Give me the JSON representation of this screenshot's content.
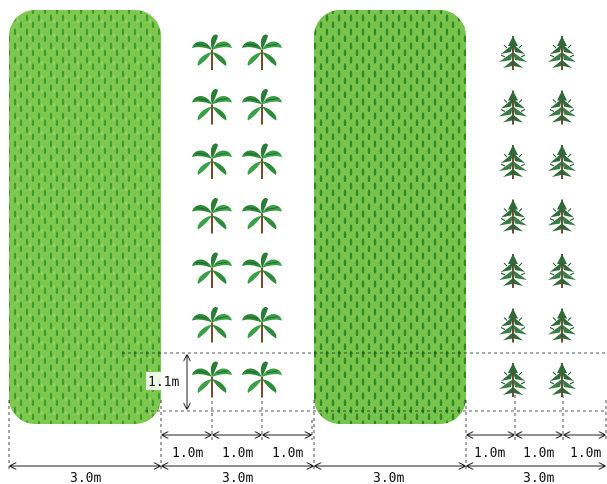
{
  "strips": [
    {
      "id": "strip-1",
      "kind": "grass"
    },
    {
      "id": "strip-2",
      "kind": "grass"
    }
  ],
  "tree_groups": [
    {
      "id": "broadleaf",
      "icon": "broadleaf-seedling-icon",
      "rows": 7,
      "cols": 2
    },
    {
      "id": "conifer",
      "icon": "conifer-seedling-icon",
      "rows": 7,
      "cols": 2
    }
  ],
  "dimensions": {
    "row_spacing": "1.1m",
    "tree_spacing_left": [
      "1.0m",
      "1.0m",
      "1.0m"
    ],
    "tree_spacing_right": [
      "1.0m",
      "1.0m",
      "1.0m"
    ],
    "band_widths": [
      "3.0m",
      "3.0m",
      "3.0m",
      "3.0m"
    ]
  },
  "colors": {
    "grass_light": "#7ec850",
    "grass_dark": "#3f9a2c",
    "leaf": "#2e8b3a",
    "needle": "#2f6b38",
    "stem": "#7a4a2a",
    "line": "#222222"
  }
}
